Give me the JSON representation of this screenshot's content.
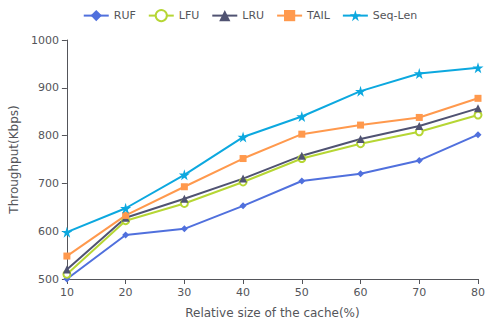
{
  "chart_data": {
    "type": "line",
    "x": [
      10,
      20,
      30,
      40,
      50,
      60,
      70,
      80
    ],
    "series": [
      {
        "name": "RUF",
        "values": [
          500,
          592,
          605,
          653,
          705,
          720,
          748,
          802
        ],
        "marker": "diamond"
      },
      {
        "name": "LFU",
        "values": [
          510,
          622,
          658,
          703,
          752,
          783,
          808,
          843
        ],
        "marker": "circle"
      },
      {
        "name": "LRU",
        "values": [
          520,
          628,
          668,
          710,
          758,
          793,
          820,
          857
        ],
        "marker": "triangle"
      },
      {
        "name": "TAIL",
        "values": [
          548,
          633,
          693,
          752,
          803,
          822,
          838,
          878
        ],
        "marker": "square"
      },
      {
        "name": "Seq-Len",
        "values": [
          598,
          648,
          718,
          797,
          840,
          893,
          930,
          942
        ],
        "marker": "star"
      }
    ],
    "xlabel": "Relative size of the cache(%)",
    "ylabel": "Throughput(Kbps)",
    "xlim": [
      10,
      80
    ],
    "ylim": [
      500,
      1000
    ],
    "xticks": [
      10,
      20,
      30,
      40,
      50,
      60,
      70,
      80
    ],
    "yticks": [
      500,
      600,
      700,
      800,
      900,
      1000
    ],
    "grid": false,
    "legend": "top"
  }
}
